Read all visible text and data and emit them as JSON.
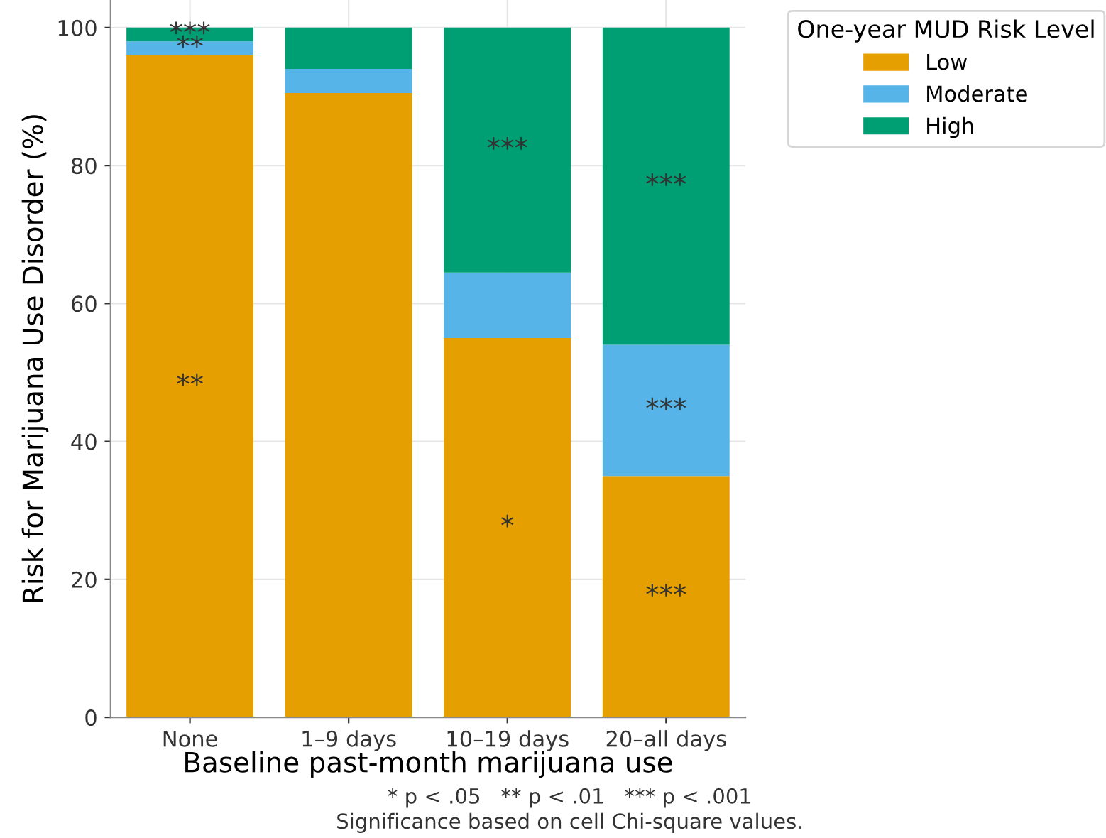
{
  "chart_data": {
    "type": "bar",
    "stacked": true,
    "xlabel": "Baseline past-month marijuana use",
    "ylabel": "Risk for Marijuana Use Disorder (%)",
    "legend_title": "One-year MUD Risk Level",
    "legend": "top right",
    "grid": true,
    "categories": [
      "None",
      "1–9 days",
      "10–19 days",
      "20–all days"
    ],
    "series": [
      {
        "name": "Low",
        "color": "#e69f00",
        "values": [
          96,
          90.5,
          55,
          35
        ],
        "value_labels": [
          "**",
          null,
          "*",
          "***"
        ]
      },
      {
        "name": "Moderate",
        "color": "#56b4e9",
        "values": [
          2,
          3.5,
          9.5,
          19
        ],
        "value_labels": [
          "**",
          null,
          null,
          "***"
        ]
      },
      {
        "name": "High",
        "color": "#009e73",
        "values": [
          2,
          6,
          35.5,
          46
        ],
        "value_labels": [
          "***",
          null,
          "***",
          "***"
        ]
      }
    ],
    "ylim": [
      0,
      104
    ],
    "yticks": [
      0,
      20,
      40,
      60,
      80,
      100
    ],
    "annotations": [
      "* p < .05   ** p < .01   *** p < .001",
      "Significance based on cell Chi-square values."
    ]
  }
}
